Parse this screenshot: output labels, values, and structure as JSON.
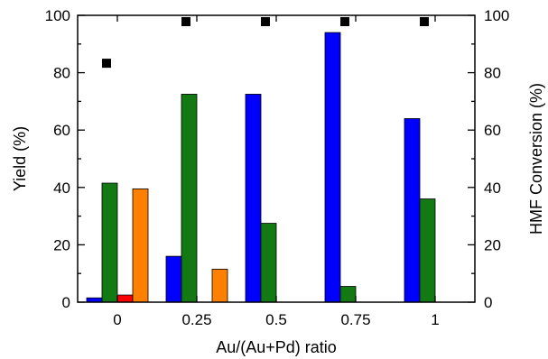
{
  "chart_data": {
    "type": "bar",
    "categories": [
      "0",
      "0.25",
      "0.5",
      "0.75",
      "1"
    ],
    "xlabel": "Au/(Au+Pd) ratio",
    "ylabel": "Yield (%)",
    "y2label": "HMF Conversion (%)",
    "ylim": [
      0,
      100
    ],
    "y2lim": [
      0,
      100
    ],
    "yticks": [
      "0",
      "20",
      "40",
      "60",
      "80",
      "100"
    ],
    "y2ticks": [
      "0",
      "20",
      "40",
      "60",
      "80",
      "100"
    ],
    "grid": false,
    "legend": "none",
    "series": [
      {
        "color": "#0000ff",
        "values": [
          1.5,
          16,
          72.5,
          94,
          64
        ]
      },
      {
        "color": "#137a13",
        "values": [
          41.5,
          72.5,
          27.5,
          5.5,
          36
        ]
      },
      {
        "color": "#ff0000",
        "values": [
          2.5,
          0,
          0,
          0,
          0
        ]
      },
      {
        "color": "#ff8000",
        "values": [
          39.5,
          11.5,
          0,
          0,
          0
        ]
      }
    ],
    "conversion": {
      "type": "scatter",
      "axis": "right",
      "marker": "square",
      "color": "#000000",
      "values": [
        85.5,
        100,
        100,
        100,
        100
      ]
    }
  }
}
